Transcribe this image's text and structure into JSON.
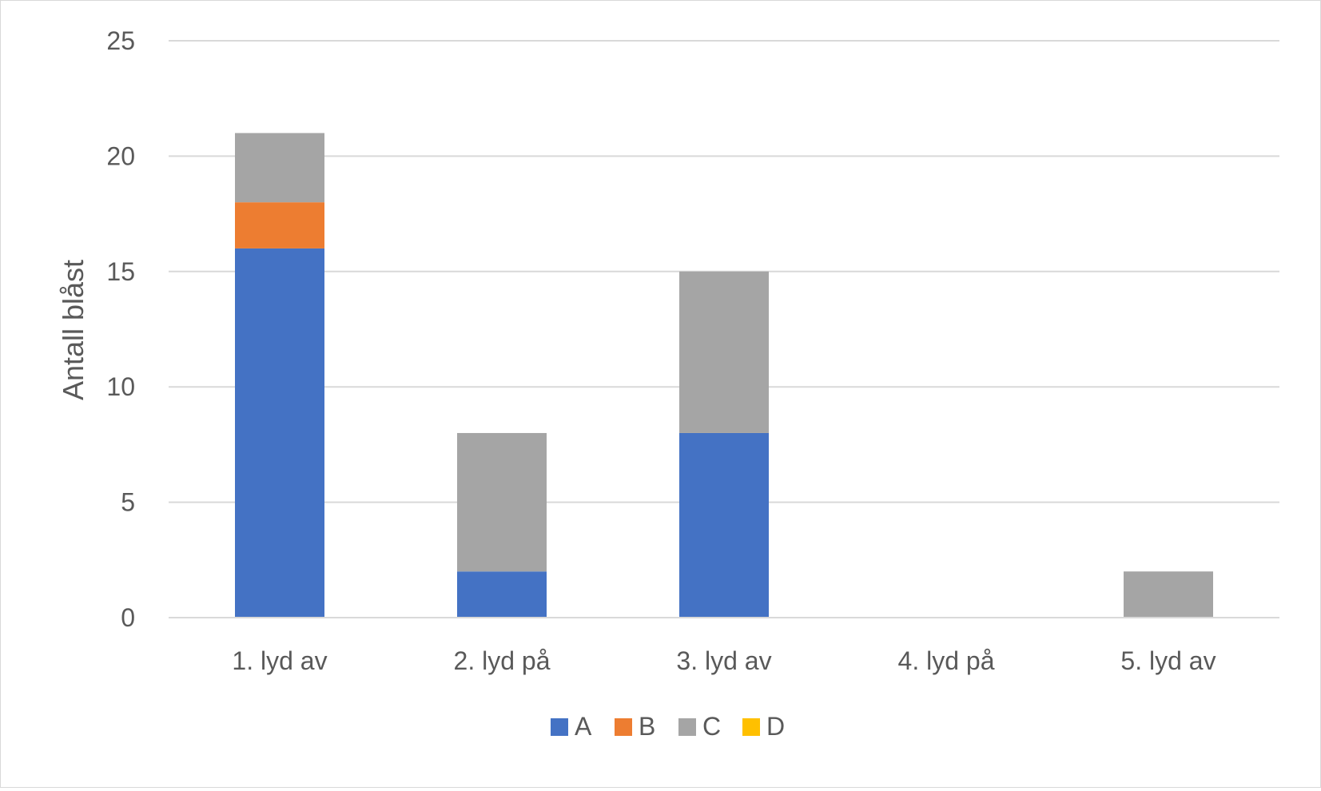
{
  "chart_data": {
    "type": "bar",
    "stacked": true,
    "title": "",
    "xlabel": "",
    "ylabel": "Antall blåst",
    "ylim": [
      0,
      25
    ],
    "yticks": [
      0,
      5,
      10,
      15,
      20,
      25
    ],
    "grid": true,
    "legend_position": "bottom",
    "categories": [
      "1. lyd av",
      "2. lyd på",
      "3. lyd av",
      "4. lyd på",
      "5. lyd av"
    ],
    "series": [
      {
        "name": "A",
        "color": "#4472C4",
        "values": [
          16,
          2,
          8,
          0,
          0
        ]
      },
      {
        "name": "B",
        "color": "#ED7D31",
        "values": [
          2,
          0,
          0,
          0,
          0
        ]
      },
      {
        "name": "C",
        "color": "#A5A5A5",
        "values": [
          3,
          6,
          7,
          0,
          2
        ]
      },
      {
        "name": "D",
        "color": "#FFC000",
        "values": [
          0,
          0,
          0,
          0,
          0
        ]
      }
    ]
  }
}
